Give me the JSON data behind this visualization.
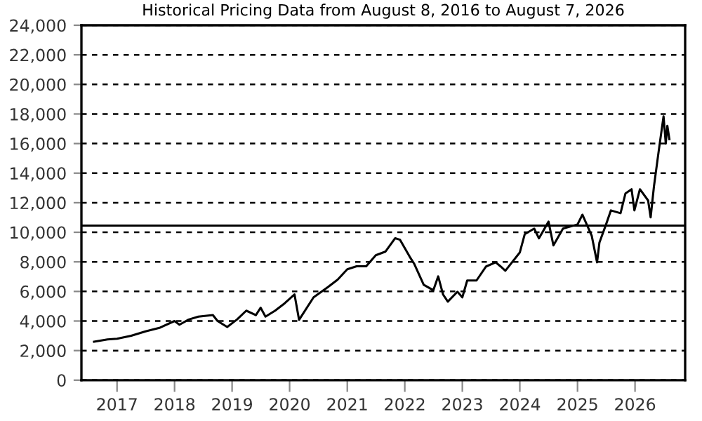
{
  "chart_data": {
    "type": "line",
    "title": "Historical Pricing Data from August 8, 2016 to August 7, 2026",
    "x": [
      "2016-08-08",
      "2016-11",
      "2017-01",
      "2017-04",
      "2017-07",
      "2017-10",
      "2018-01",
      "2018-02",
      "2018-04",
      "2018-06",
      "2018-09",
      "2018-10",
      "2018-12",
      "2019-02",
      "2019-04",
      "2019-06",
      "2019-07",
      "2019-08",
      "2019-10",
      "2019-12",
      "2020-02",
      "2020-03",
      "2020-06",
      "2020-09",
      "2020-11",
      "2021-01",
      "2021-03",
      "2021-05",
      "2021-07",
      "2021-09",
      "2021-11",
      "2021-12",
      "2022-02",
      "2022-03",
      "2022-05",
      "2022-07",
      "2022-08",
      "2022-09",
      "2022-10",
      "2022-12",
      "2023-01",
      "2023-02",
      "2023-04",
      "2023-06",
      "2023-08",
      "2023-09",
      "2023-10",
      "2024-01",
      "2024-02",
      "2024-04",
      "2024-05",
      "2024-07",
      "2024-08",
      "2024-10",
      "2025-01",
      "2025-02",
      "2025-04-01",
      "2025-05-05",
      "2025-05-20",
      "2025-07",
      "2025-08",
      "2025-10",
      "2025-11",
      "2025-12-10",
      "2025-12-28",
      "2026-02",
      "2026-03-25",
      "2026-04-10",
      "2026-05-01",
      "2026-06-01",
      "2026-07-01",
      "2026-07-15",
      "2026-07-25",
      "2026-08-07"
    ],
    "series": [
      {
        "color": "#000000",
        "values": [
          2600,
          2750,
          2800,
          3000,
          3300,
          3550,
          4000,
          3750,
          4100,
          4300,
          4400,
          4000,
          3600,
          4100,
          4700,
          4400,
          4900,
          4300,
          4700,
          5200,
          5800,
          4080,
          5600,
          6300,
          6800,
          7500,
          7700,
          7700,
          8450,
          8700,
          9600,
          9500,
          8350,
          7880,
          6450,
          6080,
          7020,
          5790,
          5310,
          5980,
          5600,
          6740,
          6740,
          7690,
          7970,
          7690,
          7400,
          8640,
          9870,
          10250,
          9590,
          10720,
          9110,
          10250,
          10530,
          11190,
          9770,
          7970,
          9300,
          10530,
          11480,
          11290,
          12620,
          12910,
          11480,
          12910,
          12150,
          11010,
          13100,
          15560,
          17840,
          16000,
          17200,
          16300
        ]
      }
    ],
    "xlim": [
      "2016-05-20",
      "2026-11-15"
    ],
    "xticks": [
      {
        "value": "2017-01-01",
        "label": "2017"
      },
      {
        "value": "2018-01-01",
        "label": "2018"
      },
      {
        "value": "2019-01-01",
        "label": "2019"
      },
      {
        "value": "2020-01-01",
        "label": "2020"
      },
      {
        "value": "2021-01-01",
        "label": "2021"
      },
      {
        "value": "2022-01-01",
        "label": "2022"
      },
      {
        "value": "2023-01-01",
        "label": "2023"
      },
      {
        "value": "2024-01-01",
        "label": "2024"
      },
      {
        "value": "2025-01-01",
        "label": "2025"
      },
      {
        "value": "2026-01-01",
        "label": "2026"
      }
    ],
    "ylim": [
      0,
      24000
    ],
    "yticks": [
      0,
      {
        "value": 2000,
        "label": "2,000"
      },
      {
        "value": 4000,
        "label": "4,000"
      },
      {
        "value": 6000,
        "label": "6,000"
      },
      {
        "value": 8000,
        "label": "8,000"
      },
      {
        "value": 10000,
        "label": "10,000"
      },
      {
        "value": 12000,
        "label": "12,000"
      },
      {
        "value": 14000,
        "label": "14,000"
      },
      {
        "value": 16000,
        "label": "16,000"
      },
      {
        "value": 18000,
        "label": "18,000"
      },
      {
        "value": 20000,
        "label": "20,000"
      },
      {
        "value": 22000,
        "label": "22,000"
      },
      {
        "value": 24000,
        "label": "24,000"
      }
    ],
    "grid": "y",
    "line_style": "solid",
    "marker": "none",
    "ref_lines": [
      {
        "axis": "y",
        "value": 10450,
        "color": "#000000",
        "line_style": "solid"
      }
    ]
  }
}
